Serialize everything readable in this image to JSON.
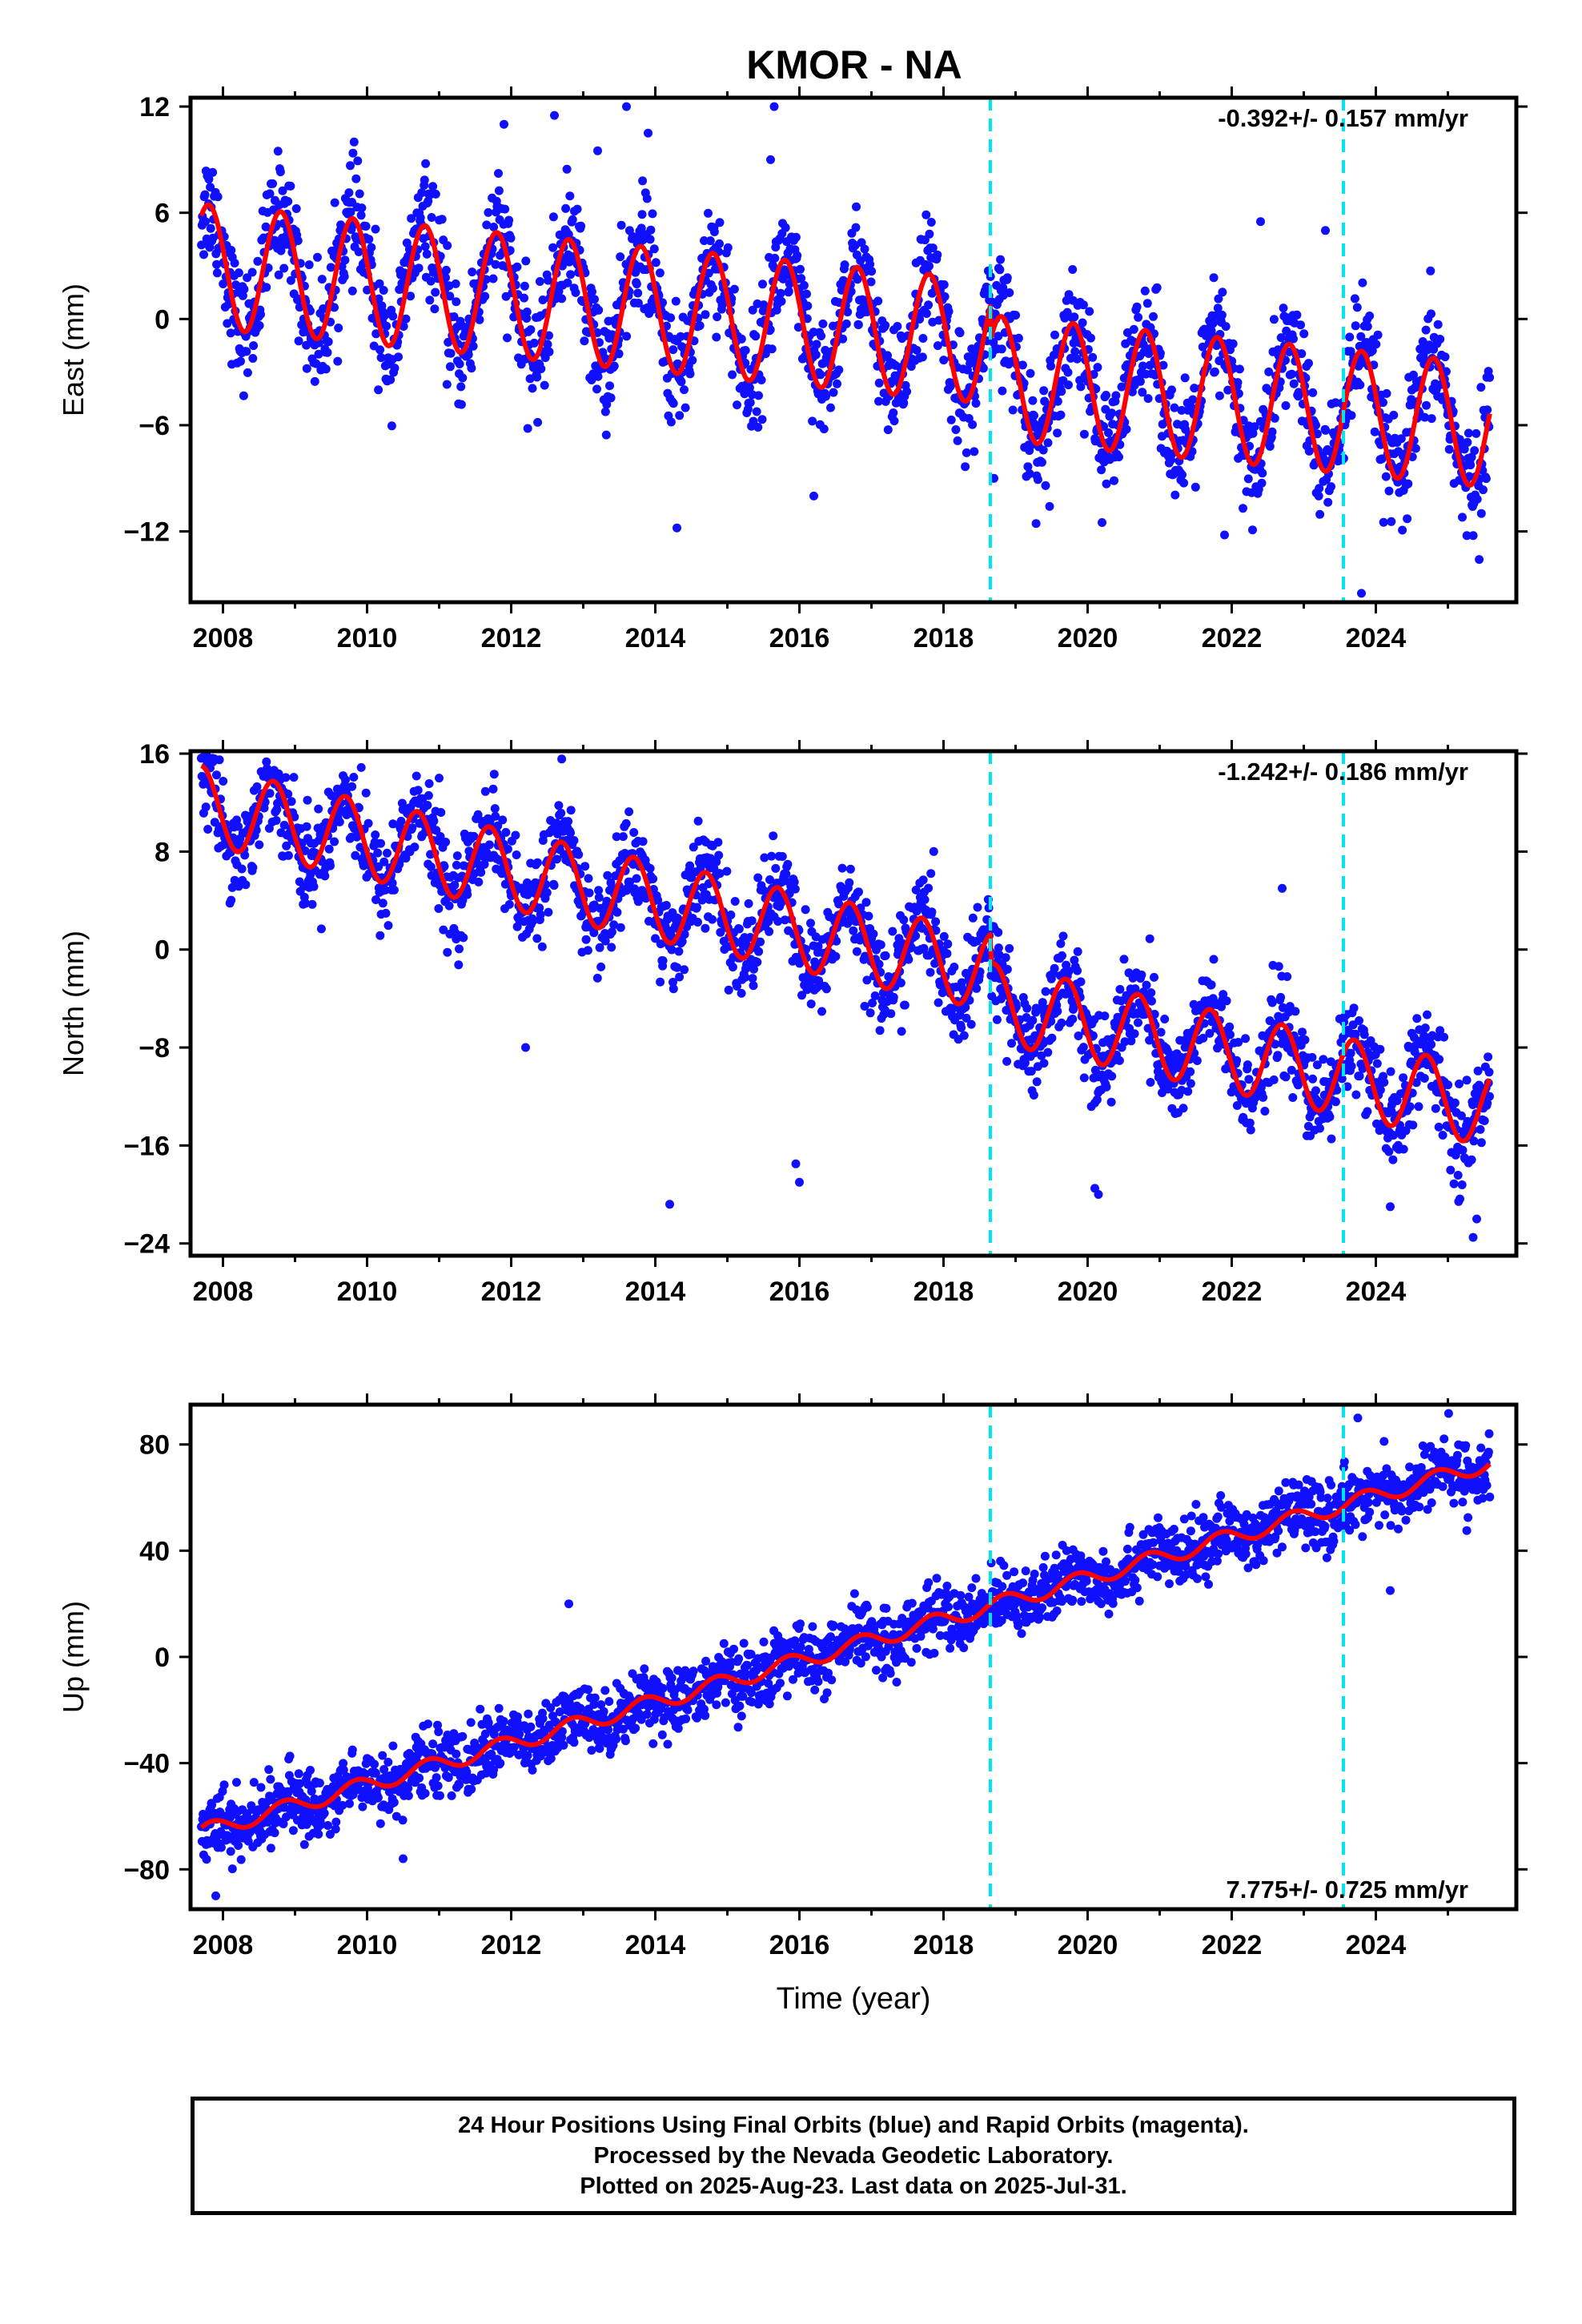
{
  "title": "KMOR - NA",
  "colors": {
    "points": "#1010ff",
    "model": "#ff0000",
    "marker": "#00e5ee",
    "frame": "#000000"
  },
  "chart_data": [
    {
      "type": "scatter",
      "name": "east",
      "ylabel": "East (mm)",
      "xlabel": "",
      "xlim": [
        2007.55,
        2025.95
      ],
      "ylim": [
        -16,
        12.5
      ],
      "yticks": [
        -12,
        -6,
        0,
        6,
        12
      ],
      "xticks": [
        2008,
        2010,
        2012,
        2014,
        2016,
        2018,
        2020,
        2022,
        2024
      ],
      "rate_text": "-0.392+/- 0.157 mm/yr",
      "rate_position": "top-right",
      "markers_x": [
        2018.65,
        2023.55
      ],
      "model": {
        "offset": 3.0,
        "trend": -0.392,
        "amplitude": 3.5,
        "phase": 0.55,
        "t0": 2007.7,
        "t1": 2025.58,
        "steps": [
          {
            "t": 2018.65,
            "dy": -2.0
          }
        ]
      },
      "points": {
        "t0": 2007.7,
        "t1": 2025.58,
        "scatter": 1.6,
        "count": 2200,
        "outliers": [
          [
            2011.9,
            11.0
          ],
          [
            2012.6,
            11.5
          ],
          [
            2013.2,
            9.5
          ],
          [
            2013.6,
            12.0
          ],
          [
            2013.9,
            10.5
          ],
          [
            2015.65,
            12.0
          ],
          [
            2014.3,
            -11.8
          ],
          [
            2015.6,
            9.0
          ],
          [
            2016.2,
            -10.0
          ],
          [
            2018.7,
            -9.0
          ],
          [
            2020.2,
            -11.5
          ],
          [
            2021.9,
            -12.2
          ],
          [
            2022.4,
            5.5
          ],
          [
            2023.3,
            5.0
          ],
          [
            2023.8,
            -15.5
          ],
          [
            2025.2,
            -11.2
          ]
        ]
      }
    },
    {
      "type": "scatter",
      "name": "north",
      "ylabel": "North (mm)",
      "xlabel": "",
      "xlim": [
        2007.55,
        2025.95
      ],
      "ylim": [
        -25,
        16.2
      ],
      "yticks": [
        -24,
        -16,
        -8,
        0,
        8,
        16
      ],
      "xticks": [
        2008,
        2010,
        2012,
        2014,
        2016,
        2018,
        2020,
        2022,
        2024
      ],
      "rate_text": "-1.242+/- 0.186 mm/yr",
      "rate_position": "top-right",
      "markers_x": [
        2018.65,
        2023.55
      ],
      "model": {
        "offset": 11.8,
        "trend": -1.242,
        "amplitude": 3.2,
        "phase": 0.45,
        "t0": 2007.7,
        "t1": 2025.58,
        "steps": [
          {
            "t": 2018.65,
            "dy": -2.5
          }
        ]
      },
      "points": {
        "t0": 2007.7,
        "t1": 2025.58,
        "scatter": 1.9,
        "count": 2200,
        "outliers": [
          [
            2014.2,
            -20.8
          ],
          [
            2015.95,
            -17.5
          ],
          [
            2016.0,
            -19.0
          ],
          [
            2020.1,
            -19.5
          ],
          [
            2020.15,
            -20.0
          ],
          [
            2024.2,
            -21.0
          ],
          [
            2025.35,
            -23.5
          ],
          [
            2025.4,
            -22.0
          ],
          [
            2022.7,
            5.0
          ],
          [
            2012.2,
            -8.0
          ],
          [
            2011.0,
            14.0
          ]
        ]
      }
    },
    {
      "type": "scatter",
      "name": "up",
      "ylabel": "Up (mm)",
      "xlabel": "Time (year)",
      "xlim": [
        2007.55,
        2025.95
      ],
      "ylim": [
        -95,
        95
      ],
      "yticks": [
        -80,
        -40,
        0,
        40,
        80
      ],
      "xticks": [
        2008,
        2010,
        2012,
        2014,
        2016,
        2018,
        2020,
        2022,
        2024
      ],
      "rate_text": "7.775+/- 0.725 mm/yr",
      "rate_position": "bottom-right",
      "markers_x": [
        2018.65,
        2023.55
      ],
      "model": {
        "offset": -66.0,
        "trend": 7.775,
        "amplitude": 3.0,
        "phase": 0.6,
        "t0": 2007.7,
        "t1": 2025.58,
        "steps": []
      },
      "points": {
        "t0": 2007.7,
        "t1": 2025.58,
        "scatter": 6.0,
        "count": 2200,
        "outliers": [
          [
            2007.9,
            -90.0
          ],
          [
            2023.75,
            90.0
          ],
          [
            2024.2,
            25.0
          ],
          [
            2012.8,
            20.0
          ],
          [
            2010.5,
            -76.0
          ]
        ]
      }
    }
  ],
  "footer": {
    "line1": "24 Hour Positions Using Final Orbits (blue) and Rapid Orbits (magenta).",
    "line2": "Processed by the Nevada Geodetic Laboratory.",
    "line3": "Plotted on 2025-Aug-23. Last data on 2025-Jul-31."
  }
}
